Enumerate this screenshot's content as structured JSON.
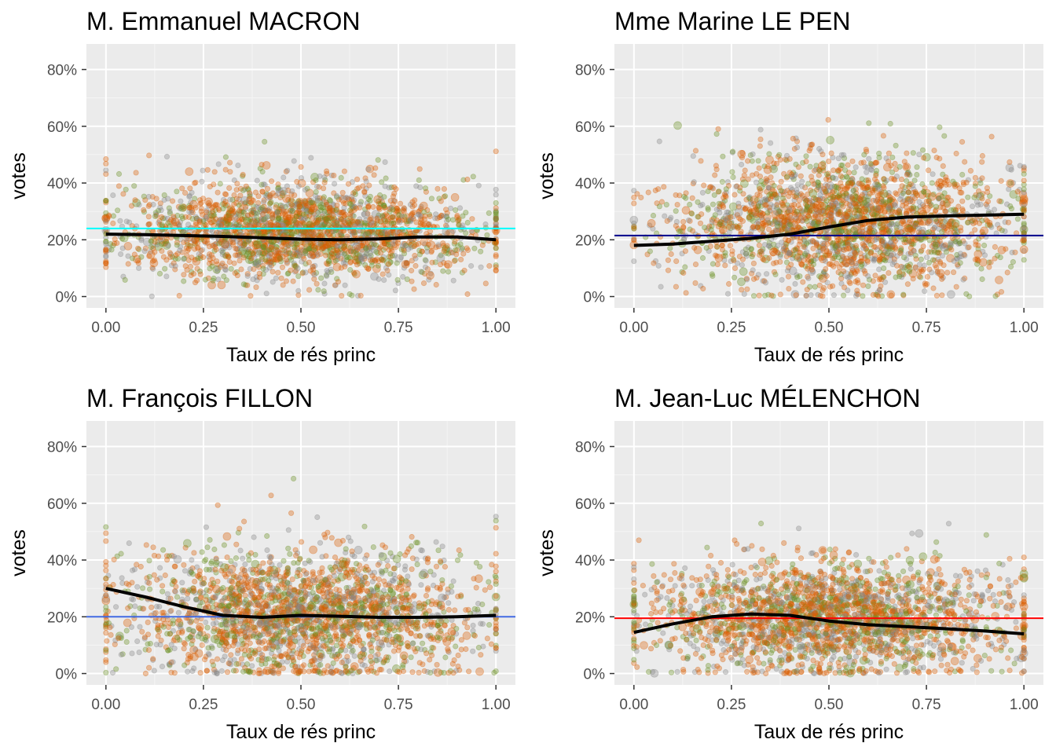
{
  "chart_data": [
    {
      "type": "scatter",
      "title": "M. Emmanuel MACRON",
      "xlabel": "Taux de rés princ",
      "ylabel": "votes",
      "xlim": [
        -0.05,
        1.05
      ],
      "ylim": [
        -0.04,
        0.89
      ],
      "x_ticks": [
        "0.00",
        "0.25",
        "0.50",
        "0.75",
        "1.00"
      ],
      "y_ticks": [
        "0%",
        "20%",
        "40%",
        "60%",
        "80%"
      ],
      "grid": true,
      "reference_line": {
        "y": 0.24,
        "color": "#00ffff"
      },
      "scatter_cloud": {
        "x_center": 0.5,
        "x_spread": 0.23,
        "y_center": 0.23,
        "y_spread": 0.075,
        "y_lower_bound": 0.0,
        "colors": [
          "#888888",
          "#d95f02",
          "#d95f02",
          "#6b8e23"
        ]
      },
      "smooth": {
        "x": [
          0,
          0.1,
          0.2,
          0.3,
          0.4,
          0.5,
          0.6,
          0.7,
          0.8,
          0.9,
          1.0
        ],
        "y": [
          0.22,
          0.218,
          0.215,
          0.212,
          0.207,
          0.202,
          0.2,
          0.203,
          0.21,
          0.21,
          0.2
        ],
        "color": "#000000"
      }
    },
    {
      "type": "scatter",
      "title": "Mme Marine LE PEN",
      "xlabel": "Taux de rés princ",
      "ylabel": "votes",
      "xlim": [
        -0.05,
        1.05
      ],
      "ylim": [
        -0.04,
        0.89
      ],
      "x_ticks": [
        "0.00",
        "0.25",
        "0.50",
        "0.75",
        "1.00"
      ],
      "y_ticks": [
        "0%",
        "20%",
        "40%",
        "60%",
        "80%"
      ],
      "grid": true,
      "reference_line": {
        "y": 0.215,
        "color": "#00008b"
      },
      "scatter_cloud": {
        "x_center": 0.55,
        "x_spread": 0.22,
        "y_center": 0.26,
        "y_spread": 0.1,
        "y_lower_bound": 0.0,
        "colors": [
          "#888888",
          "#d95f02",
          "#d95f02",
          "#6b8e23"
        ]
      },
      "smooth": {
        "x": [
          0,
          0.1,
          0.2,
          0.3,
          0.4,
          0.5,
          0.6,
          0.7,
          0.8,
          0.9,
          1.0
        ],
        "y": [
          0.18,
          0.185,
          0.195,
          0.205,
          0.22,
          0.245,
          0.268,
          0.28,
          0.284,
          0.287,
          0.29
        ],
        "color": "#000000"
      }
    },
    {
      "type": "scatter",
      "title": "M. François FILLON",
      "xlabel": "Taux de rés princ",
      "ylabel": "votes",
      "xlim": [
        -0.05,
        1.05
      ],
      "ylim": [
        -0.04,
        0.89
      ],
      "x_ticks": [
        "0.00",
        "0.25",
        "0.50",
        "0.75",
        "1.00"
      ],
      "y_ticks": [
        "0%",
        "20%",
        "40%",
        "60%",
        "80%"
      ],
      "grid": true,
      "reference_line": {
        "y": 0.2,
        "color": "#4169e1"
      },
      "scatter_cloud": {
        "x_center": 0.5,
        "x_spread": 0.23,
        "y_center": 0.21,
        "y_spread": 0.1,
        "y_lower_bound": 0.0,
        "colors": [
          "#888888",
          "#d95f02",
          "#d95f02",
          "#6b8e23"
        ]
      },
      "smooth": {
        "x": [
          0,
          0.1,
          0.2,
          0.3,
          0.4,
          0.5,
          0.6,
          0.7,
          0.8,
          0.9,
          1.0
        ],
        "y": [
          0.3,
          0.27,
          0.235,
          0.205,
          0.198,
          0.205,
          0.202,
          0.198,
          0.198,
          0.2,
          0.205
        ],
        "color": "#000000"
      }
    },
    {
      "type": "scatter",
      "title": "M. Jean-Luc MÉLENCHON",
      "xlabel": "Taux de rés princ",
      "ylabel": "votes",
      "xlim": [
        -0.05,
        1.05
      ],
      "ylim": [
        -0.04,
        0.89
      ],
      "x_ticks": [
        "0.00",
        "0.25",
        "0.50",
        "0.75",
        "1.00"
      ],
      "y_ticks": [
        "0%",
        "20%",
        "40%",
        "60%",
        "80%"
      ],
      "grid": true,
      "reference_line": {
        "y": 0.195,
        "color": "#ff0000"
      },
      "scatter_cloud": {
        "x_center": 0.5,
        "x_spread": 0.23,
        "y_center": 0.2,
        "y_spread": 0.085,
        "y_lower_bound": 0.0,
        "colors": [
          "#888888",
          "#d95f02",
          "#d95f02",
          "#6b8e23"
        ]
      },
      "smooth": {
        "x": [
          0,
          0.1,
          0.2,
          0.3,
          0.4,
          0.5,
          0.6,
          0.7,
          0.8,
          0.9,
          1.0
        ],
        "y": [
          0.145,
          0.175,
          0.2,
          0.21,
          0.205,
          0.185,
          0.172,
          0.165,
          0.158,
          0.15,
          0.14
        ],
        "color": "#000000"
      }
    }
  ]
}
